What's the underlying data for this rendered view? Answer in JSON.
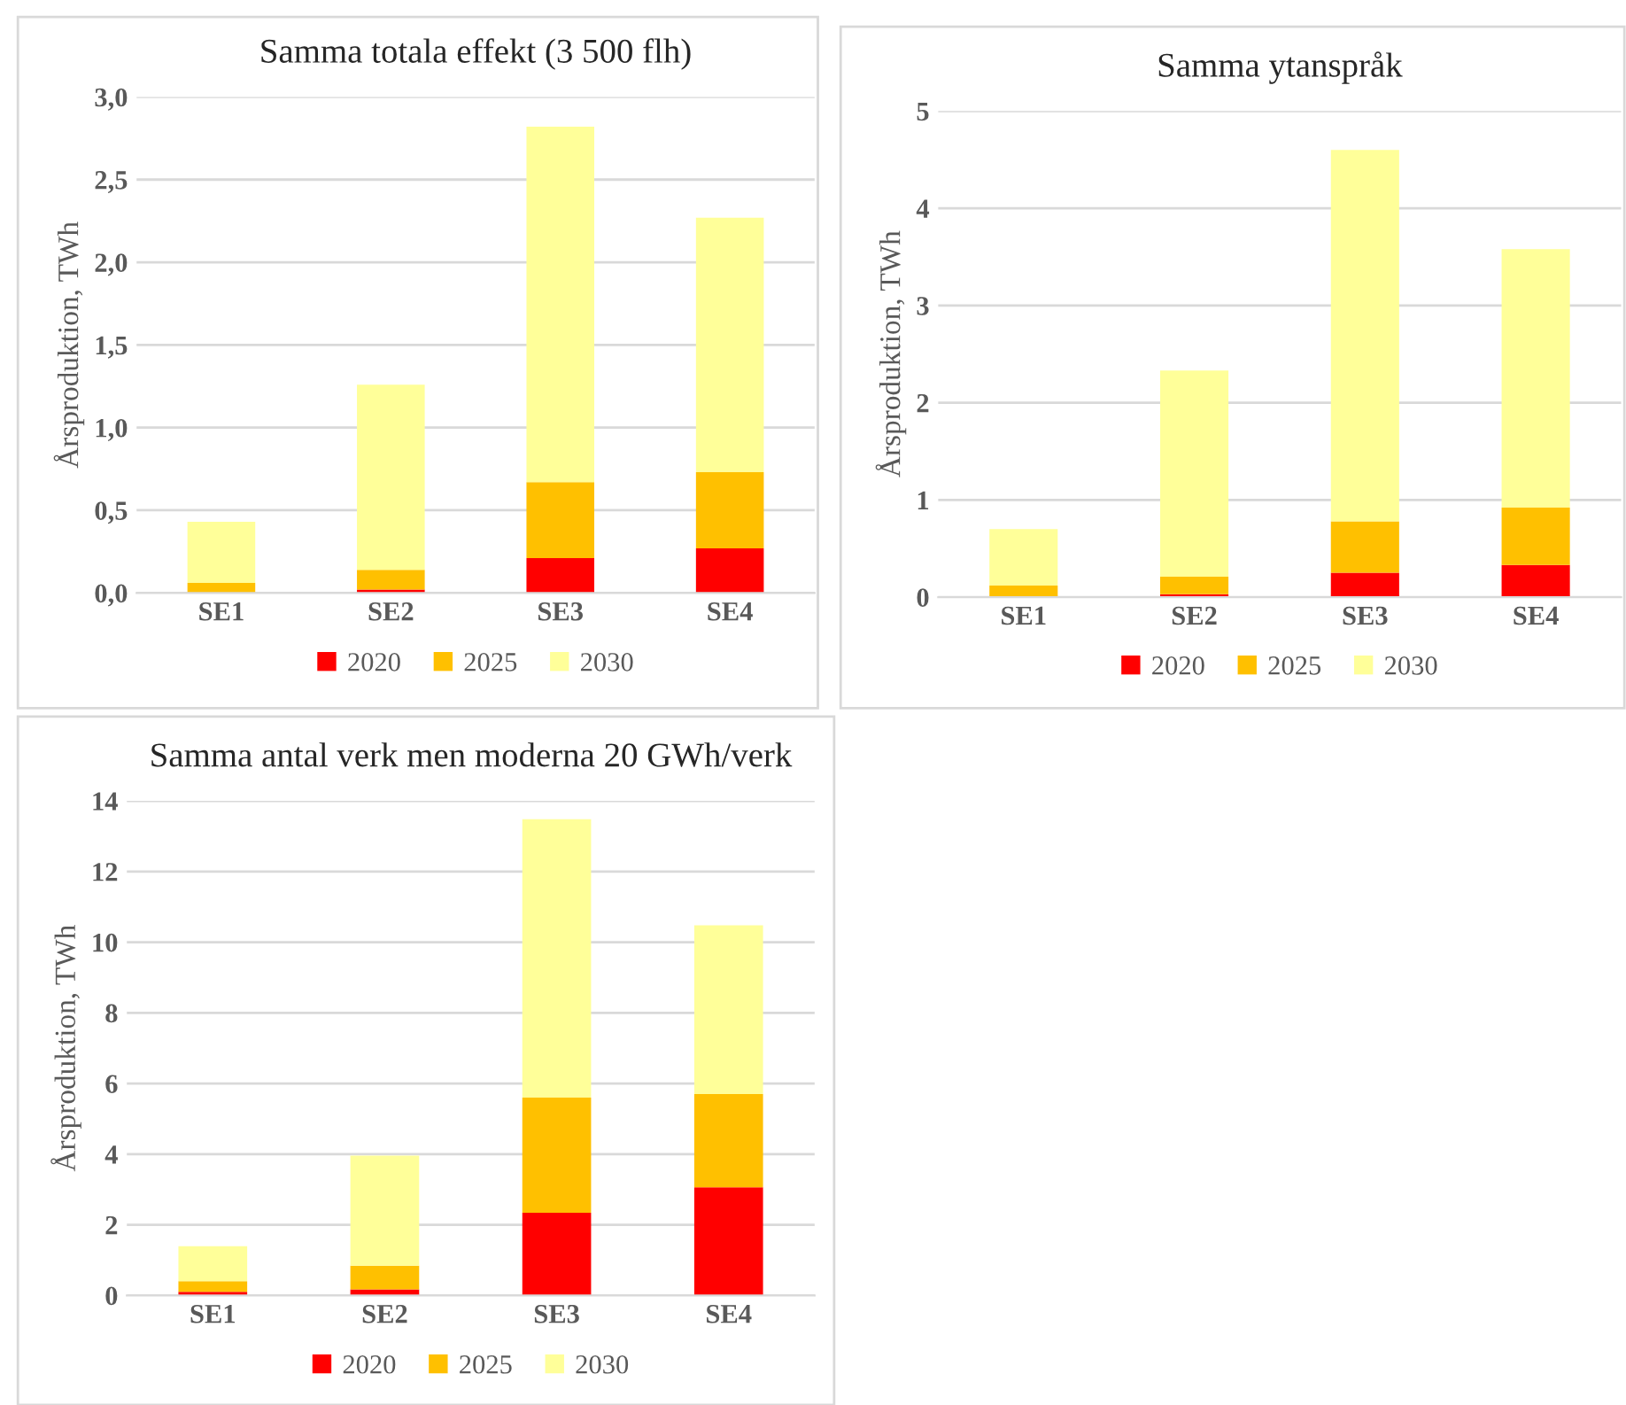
{
  "chart_data": [
    {
      "type": "bar",
      "title": "Samma totala effekt (3 500 flh)",
      "ylabel": "Årsproduktion, TWh",
      "categories": [
        "SE1",
        "SE2",
        "SE3",
        "SE4"
      ],
      "stacked": true,
      "series": [
        {
          "name": "2020",
          "color": "#ff0000",
          "values": [
            0.0,
            0.02,
            0.21,
            0.27
          ]
        },
        {
          "name": "2025",
          "color": "#ffc000",
          "values": [
            0.06,
            0.12,
            0.46,
            0.46
          ]
        },
        {
          "name": "2030",
          "color": "#ffff99",
          "values": [
            0.37,
            1.12,
            2.15,
            1.54
          ]
        }
      ],
      "ylim": [
        0,
        3.0
      ],
      "yticks": [
        {
          "value": 0,
          "label": "0,0"
        },
        {
          "value": 0.5,
          "label": "0,5"
        },
        {
          "value": 1.0,
          "label": "1,0"
        },
        {
          "value": 1.5,
          "label": "1,5"
        },
        {
          "value": 2.0,
          "label": "2,0"
        },
        {
          "value": 2.5,
          "label": "2,5"
        },
        {
          "value": 3.0,
          "label": "3,0"
        }
      ],
      "grid": "y",
      "legend": "bottom"
    },
    {
      "type": "bar",
      "title": "Samma ytanspråk",
      "ylabel": "Årsproduktion, TWh",
      "categories": [
        "SE1",
        "SE2",
        "SE3",
        "SE4"
      ],
      "stacked": true,
      "series": [
        {
          "name": "2020",
          "color": "#ff0000",
          "values": [
            0.0,
            0.03,
            0.25,
            0.33
          ]
        },
        {
          "name": "2025",
          "color": "#ffc000",
          "values": [
            0.12,
            0.18,
            0.53,
            0.59
          ]
        },
        {
          "name": "2030",
          "color": "#ffff99",
          "values": [
            0.58,
            2.12,
            3.82,
            2.66
          ]
        }
      ],
      "ylim": [
        0,
        5
      ],
      "yticks": [
        0,
        1,
        2,
        3,
        4,
        5
      ],
      "grid": "y",
      "legend": "bottom"
    },
    {
      "type": "bar",
      "title": "Samma antal verk men moderna 20 GWh/verk",
      "ylabel": "Årsproduktion, TWh",
      "categories": [
        "SE1",
        "SE2",
        "SE3",
        "SE4"
      ],
      "stacked": true,
      "series": [
        {
          "name": "2020",
          "color": "#ff0000",
          "values": [
            0.1,
            0.17,
            2.34,
            3.06
          ]
        },
        {
          "name": "2025",
          "color": "#ffc000",
          "values": [
            0.3,
            0.67,
            3.26,
            2.64
          ]
        },
        {
          "name": "2030",
          "color": "#ffff99",
          "values": [
            0.99,
            3.12,
            7.88,
            4.78
          ]
        }
      ],
      "ylim": [
        0,
        14
      ],
      "yticks": [
        0,
        2,
        4,
        6,
        8,
        10,
        12,
        14
      ],
      "grid": "y",
      "legend": "bottom"
    }
  ]
}
